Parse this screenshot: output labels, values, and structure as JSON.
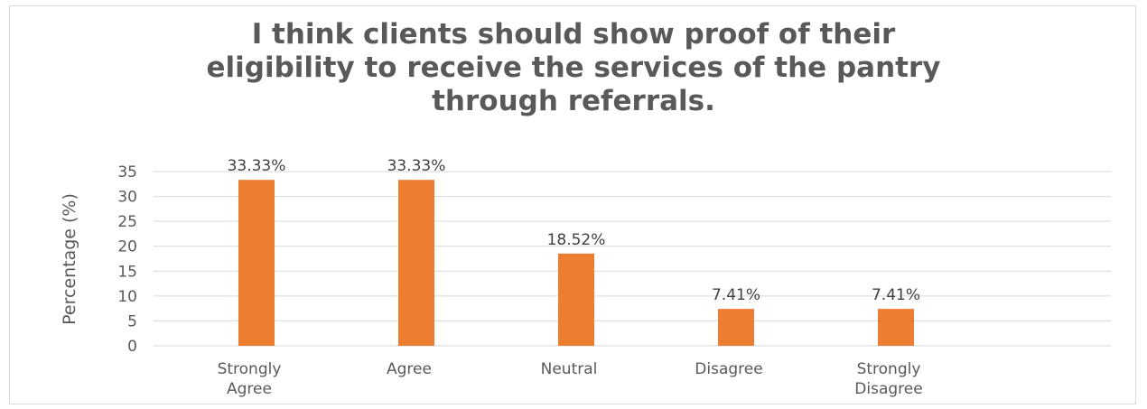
{
  "chart_data": {
    "type": "bar",
    "title_lines": [
      "I think clients should show proof of their",
      "eligibility to receive the services of the pantry",
      "through referrals."
    ],
    "categories": [
      [
        "Strongly",
        "Agree"
      ],
      [
        "Agree"
      ],
      [
        "Neutral"
      ],
      [
        "Disagree"
      ],
      [
        "Strongly",
        "Disagree"
      ]
    ],
    "values": [
      33.33,
      33.33,
      18.52,
      7.41,
      7.41
    ],
    "data_labels": [
      "33.33%",
      "33.33%",
      "18.52%",
      "7.41%",
      "7.41%"
    ],
    "xlabel": "",
    "ylabel": "Percentage (%)",
    "ylim": [
      0,
      35
    ],
    "yticks": [
      0,
      5,
      10,
      15,
      20,
      25,
      30,
      35
    ],
    "grid": true,
    "legend": "none",
    "colors": {
      "bar": "#ED7D31",
      "grid": "#d9d9d9",
      "text": "#595959"
    }
  }
}
